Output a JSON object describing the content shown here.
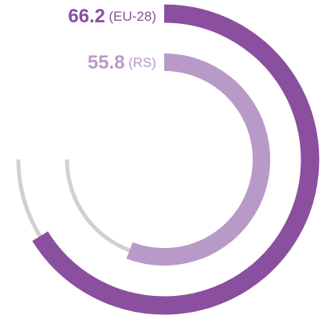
{
  "chart_data": {
    "type": "radial-bar",
    "categories": [
      "(EU-28)",
      "(RS)"
    ],
    "values": [
      66.2,
      55.8
    ],
    "colors": [
      "#8a4f9e",
      "#b89ac9"
    ],
    "track_color": "#cfd1d1",
    "ylim": [
      0,
      100
    ]
  }
}
